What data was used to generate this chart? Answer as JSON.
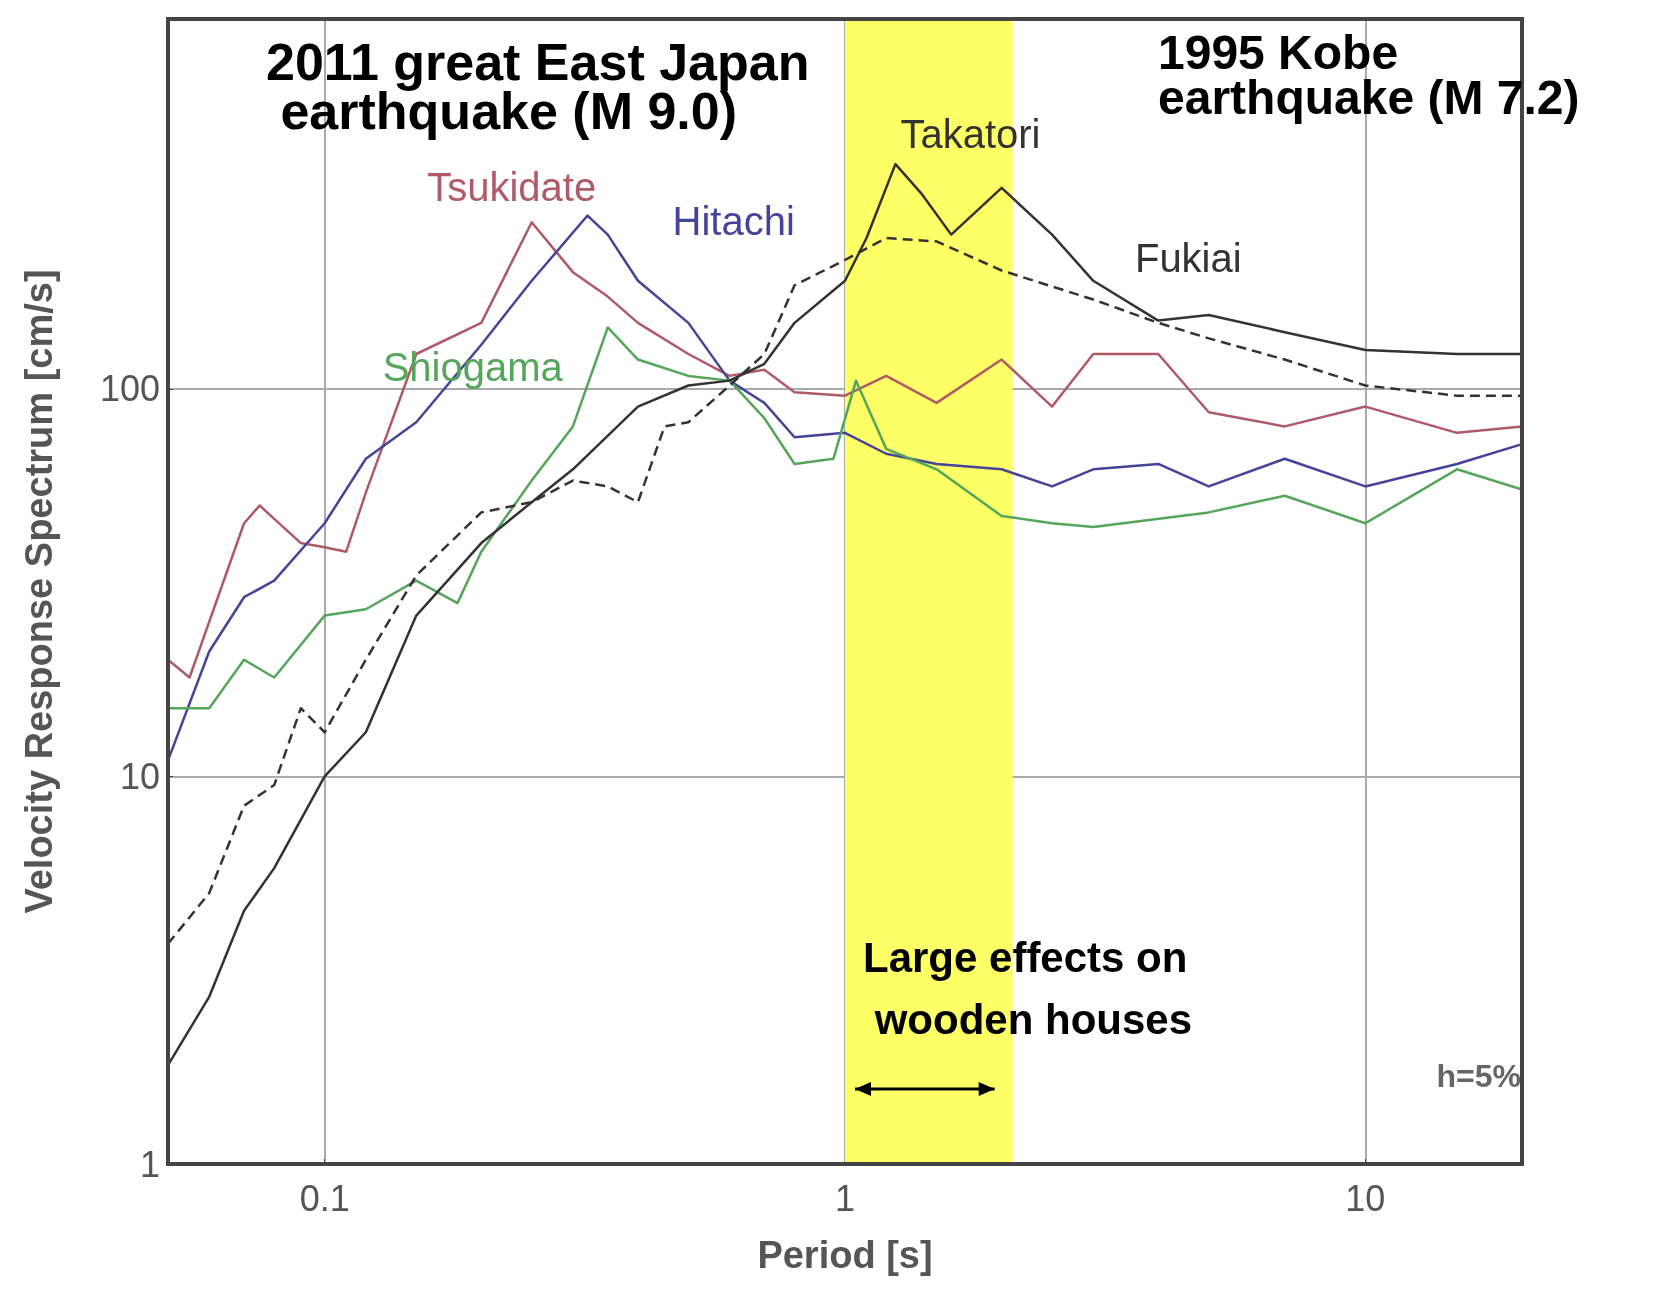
{
  "chart_data": {
    "type": "line",
    "xlabel": "Period [s]",
    "ylabel": "Velocity Response Spectrum [cm/s]",
    "log": "xy",
    "xlim": [
      0.05,
      20
    ],
    "ylim": [
      1,
      900
    ],
    "xticks": [
      0.1,
      1,
      10
    ],
    "yticks": [
      1,
      10,
      100
    ],
    "grid": true,
    "series": [
      {
        "name": "Tsukidate",
        "color": "#b05a68",
        "x": [
          0.05,
          0.055,
          0.07,
          0.075,
          0.09,
          0.1,
          0.11,
          0.12,
          0.15,
          0.2,
          0.25,
          0.3,
          0.35,
          0.4,
          0.5,
          0.6,
          0.7,
          0.8,
          1,
          1.2,
          1.5,
          2,
          2.5,
          3,
          4,
          5,
          7,
          10,
          15,
          20
        ],
        "values": [
          20,
          18,
          45,
          50,
          40,
          39,
          38,
          54,
          123,
          148,
          269,
          200,
          173,
          148,
          123,
          108,
          112,
          98,
          96,
          108,
          92,
          119,
          90,
          123,
          123,
          87,
          80,
          90,
          77,
          80
        ]
      },
      {
        "name": "Hitachi",
        "color": "#44449a",
        "x": [
          0.05,
          0.06,
          0.07,
          0.08,
          0.1,
          0.12,
          0.15,
          0.2,
          0.25,
          0.32,
          0.35,
          0.4,
          0.5,
          0.6,
          0.7,
          0.8,
          1,
          1.2,
          1.5,
          2,
          2.5,
          3,
          4,
          5,
          7,
          10,
          15,
          20
        ],
        "values": [
          11,
          21,
          29,
          32,
          45,
          66,
          82,
          130,
          190,
          280,
          250,
          190,
          148,
          105,
          92,
          75,
          77,
          68,
          64,
          62,
          56,
          62,
          64,
          56,
          66,
          56,
          64,
          72
        ]
      },
      {
        "name": "Shiogama",
        "color": "#55a65a",
        "x": [
          0.05,
          0.06,
          0.07,
          0.08,
          0.1,
          0.12,
          0.15,
          0.18,
          0.2,
          0.25,
          0.3,
          0.35,
          0.4,
          0.5,
          0.6,
          0.7,
          0.8,
          0.95,
          1.05,
          1.2,
          1.5,
          2,
          2.5,
          3,
          5,
          7,
          10,
          15,
          20
        ],
        "values": [
          15,
          15,
          20,
          18,
          26,
          27,
          32,
          28,
          38,
          58,
          80,
          144,
          119,
          108,
          105,
          84,
          64,
          66,
          105,
          70,
          62,
          47,
          45,
          44,
          48,
          53,
          45,
          62,
          55
        ]
      },
      {
        "name": "Takatori",
        "color": "#333333",
        "x": [
          0.05,
          0.06,
          0.07,
          0.08,
          0.1,
          0.12,
          0.15,
          0.2,
          0.25,
          0.3,
          0.4,
          0.5,
          0.6,
          0.7,
          0.8,
          1,
          1.1,
          1.25,
          1.4,
          1.6,
          2,
          2.5,
          3,
          4,
          5,
          7,
          10,
          15,
          20
        ],
        "values": [
          1.8,
          2.7,
          4.5,
          5.8,
          10,
          13,
          26,
          40,
          51,
          62,
          90,
          102,
          105,
          116,
          148,
          190,
          245,
          380,
          320,
          250,
          330,
          250,
          190,
          150,
          155,
          140,
          126,
          123,
          123
        ]
      },
      {
        "name": "Fukiai",
        "color": "#333333",
        "line_style": "dashed",
        "x": [
          0.05,
          0.06,
          0.07,
          0.08,
          0.09,
          0.1,
          0.12,
          0.15,
          0.2,
          0.25,
          0.3,
          0.35,
          0.4,
          0.45,
          0.5,
          0.6,
          0.7,
          0.8,
          1,
          1.2,
          1.5,
          2,
          3,
          4,
          5,
          7,
          10,
          15,
          20
        ],
        "values": [
          3.7,
          5,
          8.4,
          9.5,
          15,
          13,
          20,
          33,
          48,
          51,
          58,
          56,
          51,
          80,
          82,
          102,
          123,
          185,
          215,
          245,
          240,
          202,
          170,
          148,
          135,
          119,
          102,
          96,
          96
        ]
      }
    ],
    "bands": [
      {
        "axis": "x",
        "from": 1,
        "to": 2.1,
        "label": "Large effects on wooden houses",
        "color": "#ffff66"
      }
    ],
    "annotations": [
      "2011 great East Japan earthquake (M 9.0)",
      "1995 Kobe earthquake (M 7.2)",
      "h=5%"
    ]
  }
}
